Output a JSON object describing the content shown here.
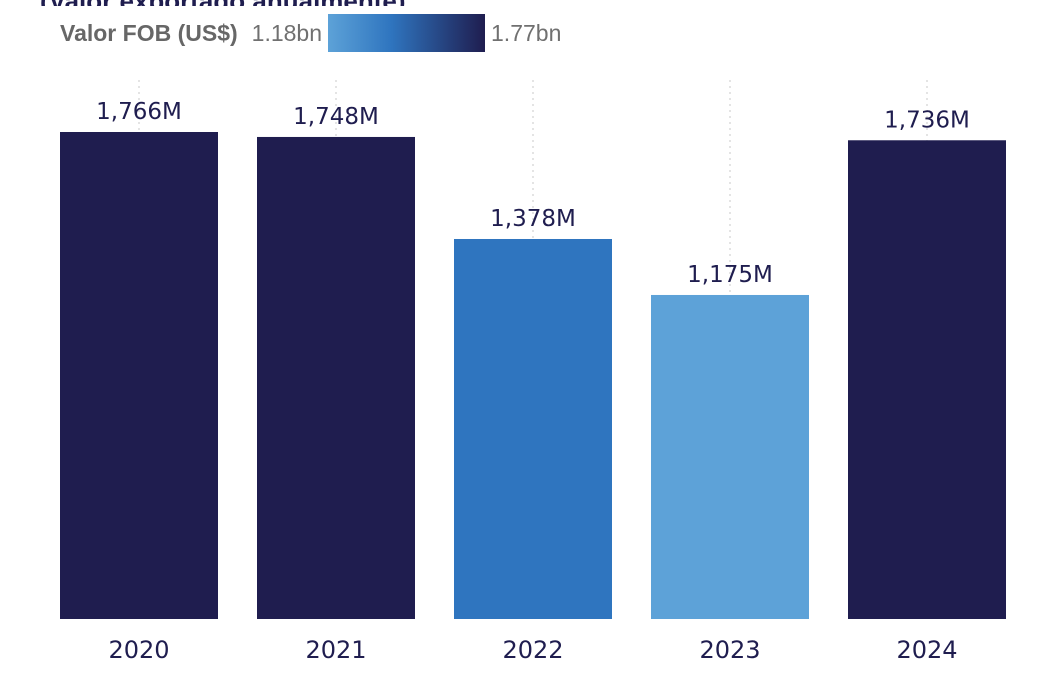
{
  "legend": {
    "title": "Valor FOB (US$)",
    "min_label": "1.18bn",
    "max_label": "1.77bn",
    "gradient_colors": [
      "#5da2d8",
      "#2f75bf",
      "#1f1d4f"
    ]
  },
  "chart_data": {
    "type": "bar",
    "categories": [
      "2020",
      "2021",
      "2022",
      "2023",
      "2024"
    ],
    "values": [
      1766,
      1748,
      1378,
      1175,
      1736
    ],
    "data_labels": [
      "1,766M",
      "1,748M",
      "1,378M",
      "1,175M",
      "1,736M"
    ],
    "value_unit": "M US$",
    "ylim": [
      0,
      1766
    ],
    "grid": "vertical dotted lines at category centers",
    "bar_colors": [
      "#1f1d4f",
      "#1f1d4f",
      "#2f75bf",
      "#5da2d8",
      "#1f1d4f"
    ]
  }
}
